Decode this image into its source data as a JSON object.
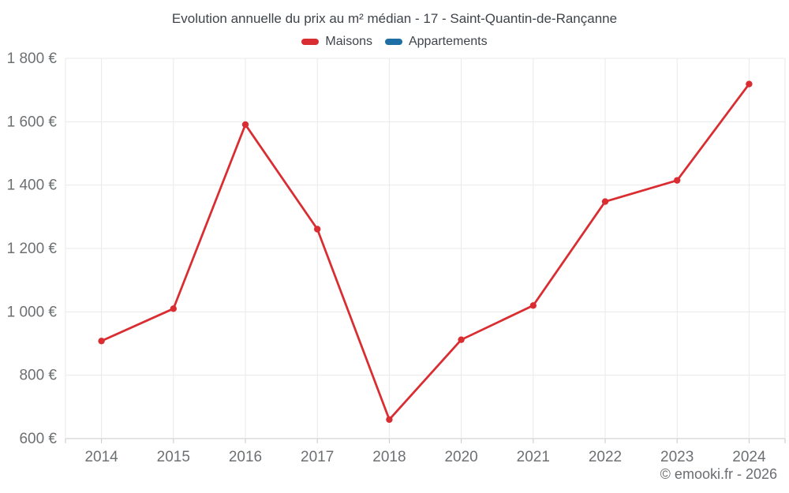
{
  "header": {
    "title": "Evolution annuelle du prix au m² médian - 17 - Saint-Quantin-de-Rançanne"
  },
  "legend": {
    "items": [
      {
        "label": "Maisons",
        "color": "#d92d32"
      },
      {
        "label": "Appartements",
        "color": "#1c6ea4"
      }
    ]
  },
  "footer": {
    "copyright": "© emooki.fr - 2026"
  },
  "chart_data": {
    "type": "line",
    "title": "Evolution annuelle du prix au m² médian - 17 - Saint-Quantin-de-Rançanne",
    "categories": [
      "2014",
      "2015",
      "2016",
      "2017",
      "2018",
      "2020",
      "2021",
      "2022",
      "2023",
      "2024"
    ],
    "series": [
      {
        "name": "Maisons",
        "color": "#d92d32",
        "values": [
          908,
          1010,
          1591,
          1261,
          660,
          912,
          1020,
          1348,
          1415,
          1719
        ]
      },
      {
        "name": "Appartements",
        "color": "#1c6ea4",
        "values": []
      }
    ],
    "xlabel": "",
    "ylabel": "",
    "ylim": [
      600,
      1800
    ],
    "y_ticks": [
      {
        "value": 600,
        "label": "600 €"
      },
      {
        "value": 800,
        "label": "800 €"
      },
      {
        "value": 1000,
        "label": "1 000 €"
      },
      {
        "value": 1200,
        "label": "1 200 €"
      },
      {
        "value": 1400,
        "label": "1 400 €"
      },
      {
        "value": 1600,
        "label": "1 600 €"
      },
      {
        "value": 1800,
        "label": "1 800 €"
      }
    ],
    "grid": true,
    "legend_position": "top"
  },
  "style": {
    "grid_color": "#e9e9e9",
    "axis_color": "#c9c9c9",
    "tick_label_color": "#6d7073",
    "title_color": "#3f444a",
    "footer_color": "#6a6d70",
    "background": "#ffffff"
  }
}
